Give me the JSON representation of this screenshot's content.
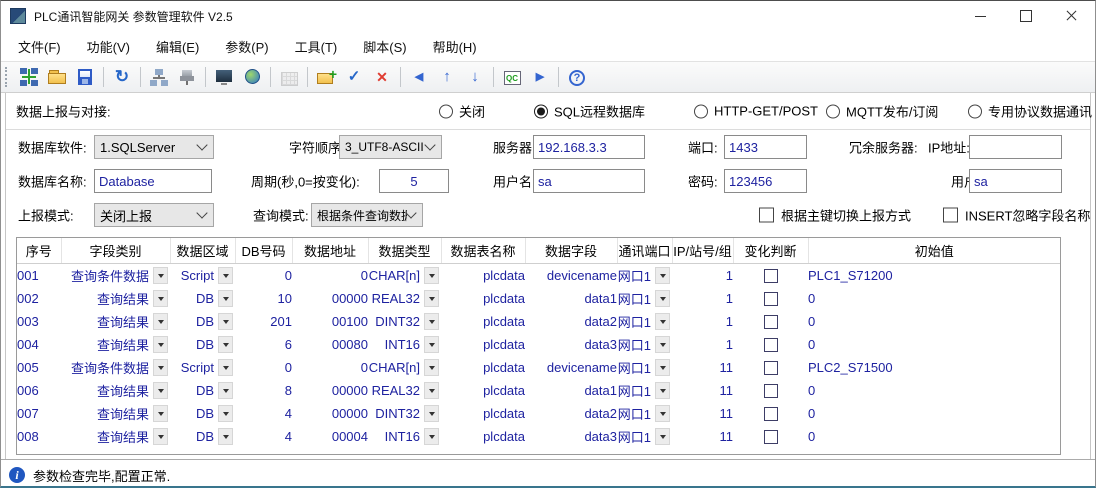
{
  "window": {
    "title": "PLC通讯智能网关 参数管理软件 V2.5"
  },
  "menu": {
    "items": [
      "文件(F)",
      "功能(V)",
      "编辑(E)",
      "参数(P)",
      "工具(T)",
      "脚本(S)",
      "帮助(H)"
    ]
  },
  "toolbar": {
    "icons": [
      {
        "name": "connect-icon",
        "glyph": ""
      },
      {
        "name": "open-file-icon",
        "glyph": ""
      },
      {
        "name": "save-icon",
        "glyph": ""
      },
      {
        "name": "separator"
      },
      {
        "name": "refresh-icon",
        "glyph": "↻"
      },
      {
        "name": "separator"
      },
      {
        "name": "sitemap-icon",
        "glyph": ""
      },
      {
        "name": "serial-port-icon",
        "glyph": ""
      },
      {
        "name": "separator"
      },
      {
        "name": "monitor-config-icon",
        "glyph": ""
      },
      {
        "name": "network-globe-icon",
        "glyph": ""
      },
      {
        "name": "separator"
      },
      {
        "name": "table-icon",
        "glyph": "",
        "disabled": true
      },
      {
        "name": "separator"
      },
      {
        "name": "add-folder-icon",
        "glyph": ""
      },
      {
        "name": "apply-check-icon",
        "glyph": "✓"
      },
      {
        "name": "delete-x-icon",
        "glyph": "✕"
      },
      {
        "name": "separator"
      },
      {
        "name": "arrow-left-icon",
        "glyph": "◀"
      },
      {
        "name": "arrow-up-icon",
        "glyph": "↑"
      },
      {
        "name": "arrow-down-icon",
        "glyph": "↓"
      },
      {
        "name": "separator"
      },
      {
        "name": "qc-icon",
        "glyph": "QC"
      },
      {
        "name": "arrow-right-icon",
        "glyph": "▶"
      },
      {
        "name": "separator"
      },
      {
        "name": "help-icon",
        "glyph": "?"
      }
    ]
  },
  "report": {
    "label": "数据上报与对接:",
    "options": [
      {
        "label": "关闭",
        "selected": false
      },
      {
        "label": "SQL远程数据库",
        "selected": true
      },
      {
        "label": "HTTP-GET/POST",
        "selected": false
      },
      {
        "label": "MQTT发布/订阅",
        "selected": false
      },
      {
        "label": "专用协议数据通讯",
        "selected": false
      }
    ]
  },
  "form": {
    "db_software_label": "数据库软件:",
    "db_software_value": "1.SQLServer",
    "char_order_label": "字符顺序:",
    "char_order_value": "3_UTF8-ASCII",
    "server_label": "服务器:",
    "server_value": "192.168.3.3",
    "port_label": "端口:",
    "port_value": "1433",
    "redundant_label": "冗余服务器:",
    "redundant_ip_label": "IP地址:",
    "redundant_ip_value": "",
    "db_name_label": "数据库名称:",
    "db_name_value": "Database",
    "period_label": "周期(秒,0=按变化):",
    "period_value": "5",
    "user_label": "用户名:",
    "user_value": "sa",
    "password_label": "密码:",
    "password_value": "123456",
    "user2_label": "用户名:",
    "user2_value": "sa",
    "report_mode_label": "上报模式:",
    "report_mode_value": "关闭上报",
    "query_mode_label": "查询模式:",
    "query_mode_value": "根据条件查询数据",
    "primary_key_switch_label": "根据主键切换上报方式",
    "primary_key_switch_checked": false,
    "insert_ignore_label": "INSERT忽略字段名称",
    "insert_ignore_checked": false
  },
  "table": {
    "headers": [
      "序号",
      "字段类别",
      "数据区域",
      "DB号码",
      "数据地址",
      "数据类型",
      "数据表名称",
      "数据字段",
      "通讯端口",
      "IP/站号/组",
      "变化判断",
      "初始值"
    ],
    "rows": [
      {
        "seq": "001",
        "field_type": "查询条件数据",
        "data_area": "Script",
        "db_no": "0",
        "data_addr": "0",
        "data_type": "CHAR[n]",
        "table_name": "plcdata",
        "field": "devicename",
        "port": "网口1",
        "station": "1",
        "change": false,
        "init_value": "PLC1_S71200"
      },
      {
        "seq": "002",
        "field_type": "查询结果",
        "data_area": "DB",
        "db_no": "10",
        "data_addr": "00000",
        "data_type": "REAL32",
        "table_name": "plcdata",
        "field": "data1",
        "port": "网口1",
        "station": "1",
        "change": false,
        "init_value": "0"
      },
      {
        "seq": "003",
        "field_type": "查询结果",
        "data_area": "DB",
        "db_no": "201",
        "data_addr": "00100",
        "data_type": "DINT32",
        "table_name": "plcdata",
        "field": "data2",
        "port": "网口1",
        "station": "1",
        "change": false,
        "init_value": "0"
      },
      {
        "seq": "004",
        "field_type": "查询结果",
        "data_area": "DB",
        "db_no": "6",
        "data_addr": "00080",
        "data_type": "INT16",
        "table_name": "plcdata",
        "field": "data3",
        "port": "网口1",
        "station": "1",
        "change": false,
        "init_value": "0"
      },
      {
        "seq": "005",
        "field_type": "查询条件数据",
        "data_area": "Script",
        "db_no": "0",
        "data_addr": "0",
        "data_type": "CHAR[n]",
        "table_name": "plcdata",
        "field": "devicename",
        "port": "网口1",
        "station": "11",
        "change": false,
        "init_value": "PLC2_S71500"
      },
      {
        "seq": "006",
        "field_type": "查询结果",
        "data_area": "DB",
        "db_no": "8",
        "data_addr": "00000",
        "data_type": "REAL32",
        "table_name": "plcdata",
        "field": "data1",
        "port": "网口1",
        "station": "11",
        "change": false,
        "init_value": "0"
      },
      {
        "seq": "007",
        "field_type": "查询结果",
        "data_area": "DB",
        "db_no": "4",
        "data_addr": "00000",
        "data_type": "DINT32",
        "table_name": "plcdata",
        "field": "data2",
        "port": "网口1",
        "station": "11",
        "change": false,
        "init_value": "0"
      },
      {
        "seq": "008",
        "field_type": "查询结果",
        "data_area": "DB",
        "db_no": "4",
        "data_addr": "00004",
        "data_type": "INT16",
        "table_name": "plcdata",
        "field": "data3",
        "port": "网口1",
        "station": "11",
        "change": false,
        "init_value": "0"
      }
    ]
  },
  "status": {
    "message": "参数检查完毕,配置正常."
  },
  "colors": {
    "grid_text": "#1E22A0",
    "info_icon": "#2057C0",
    "check_blue": "#2667C9",
    "delete_red": "#E03C31"
  }
}
